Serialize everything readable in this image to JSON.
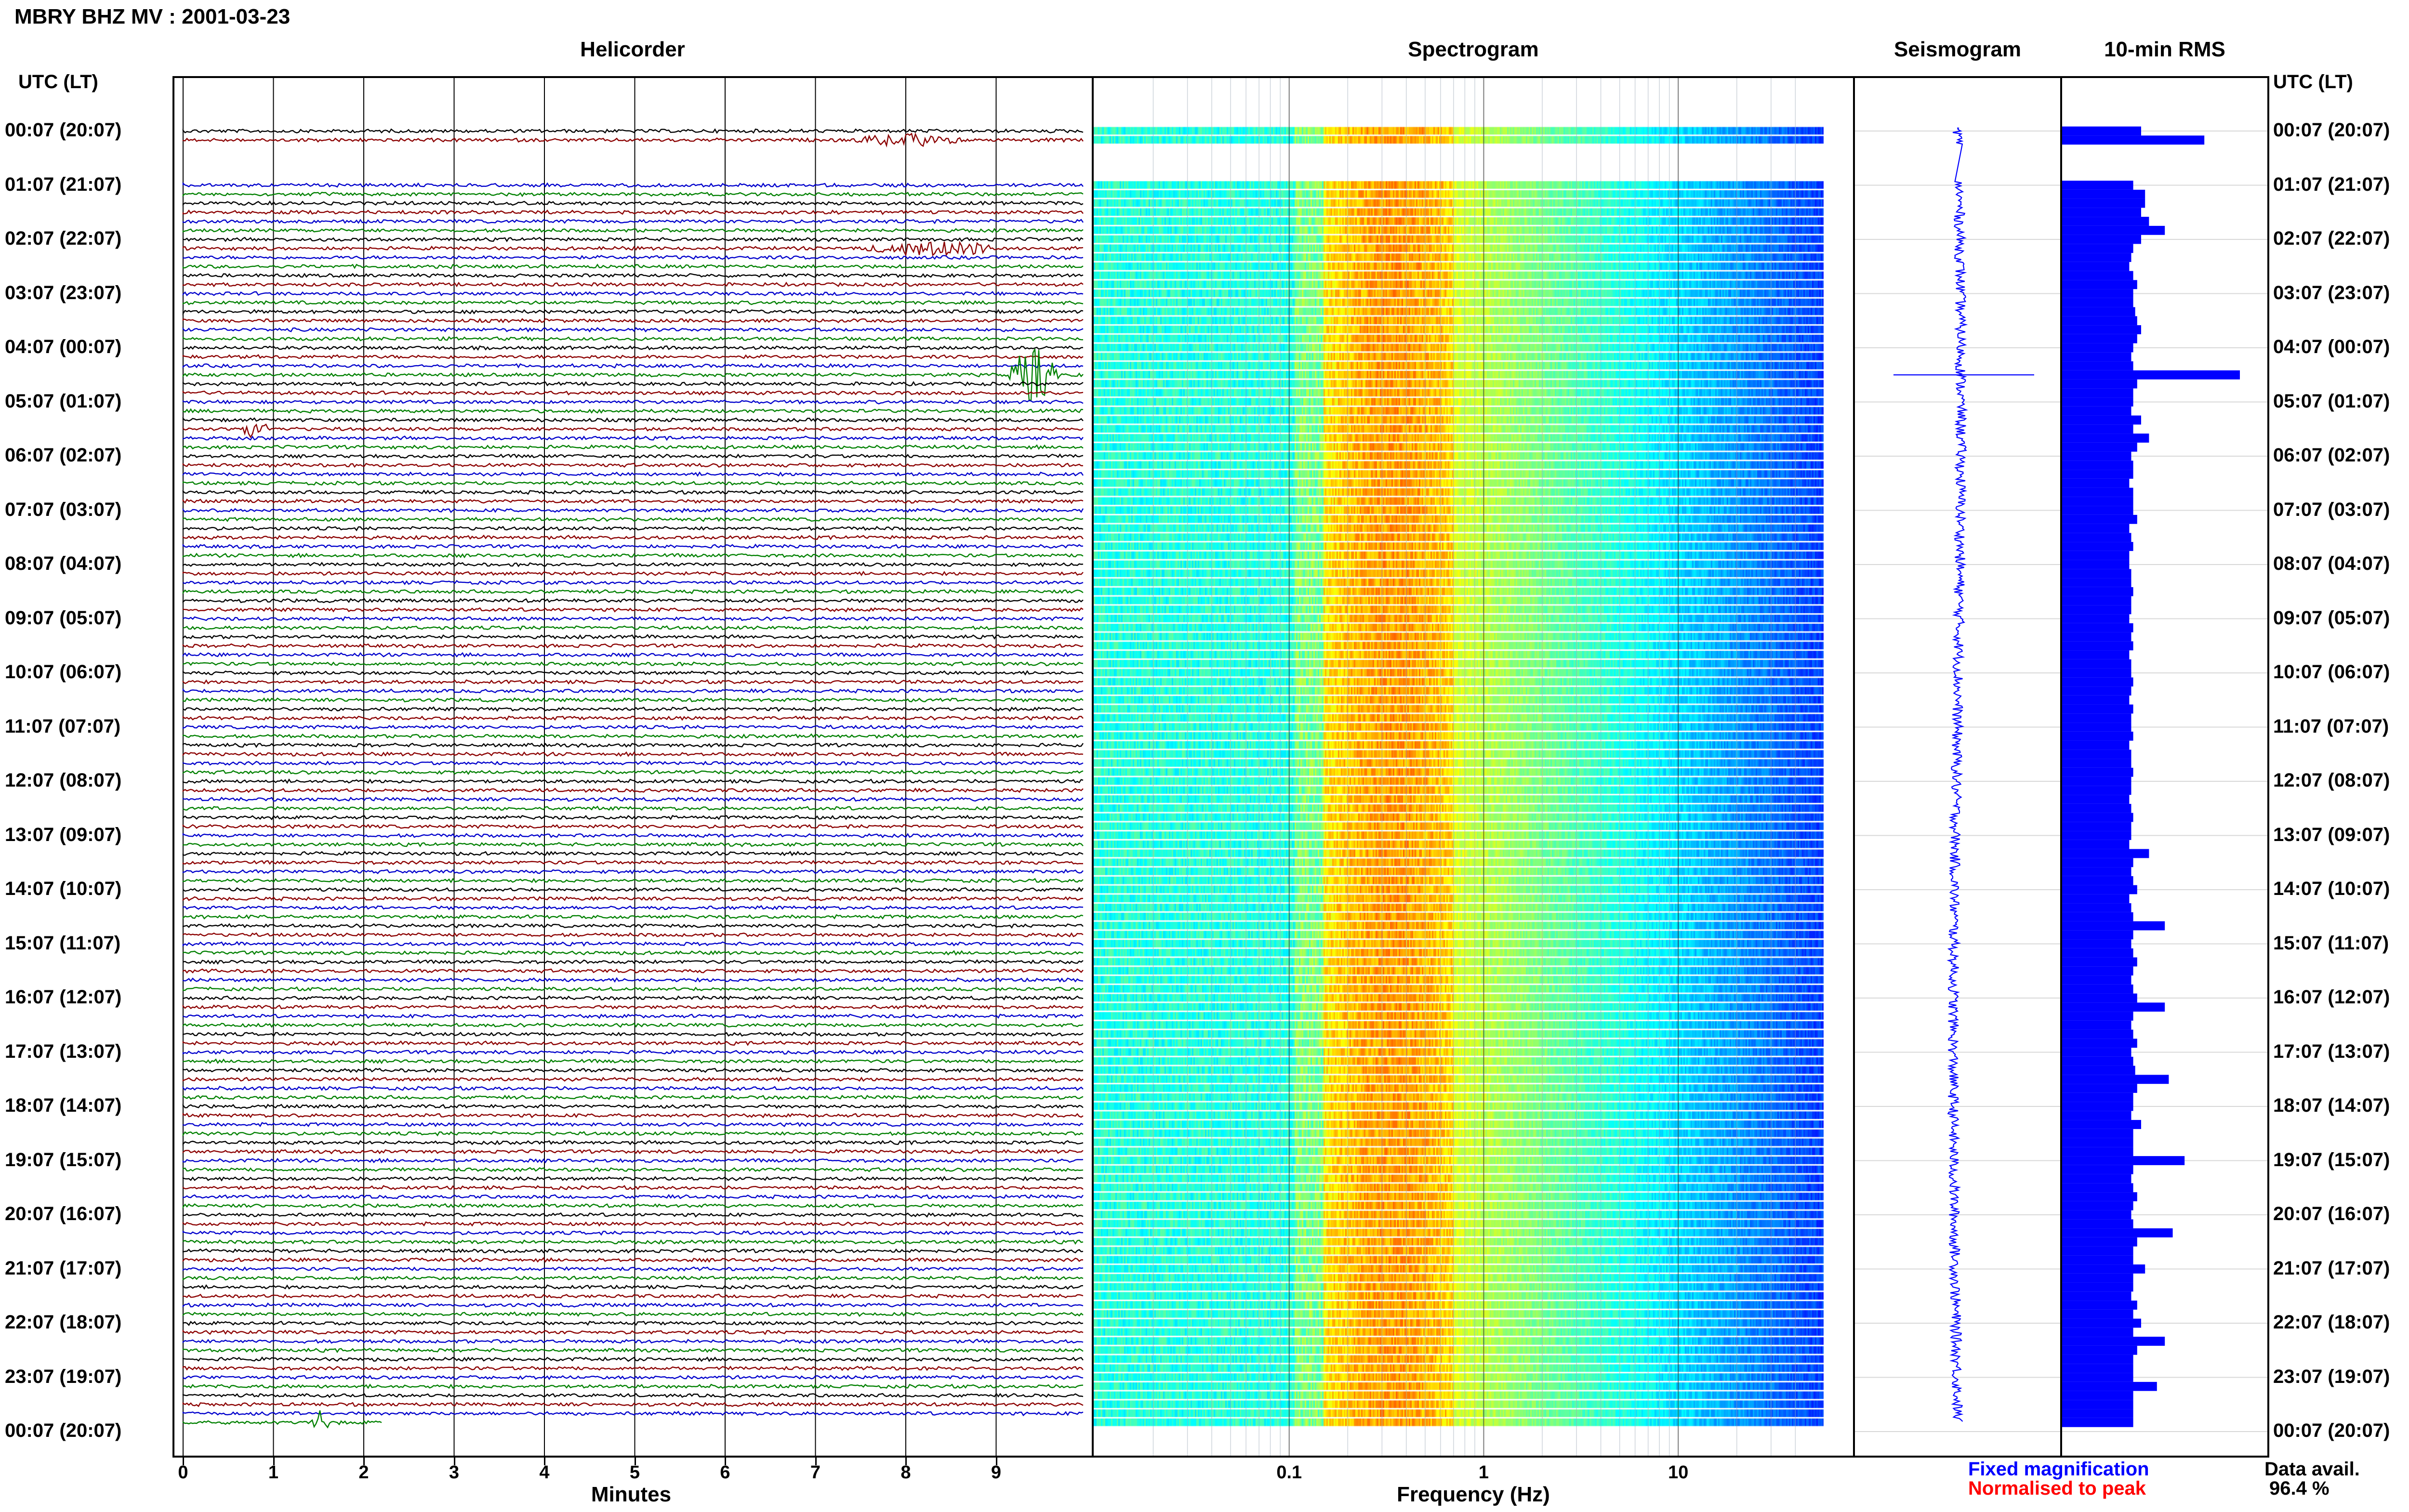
{
  "title": "MBRY BHZ MV : 2001-03-23",
  "utc_lt_label": "UTC (LT)",
  "panels": {
    "helicorder": "Helicorder",
    "spectrogram": "Spectrogram",
    "seismogram": "Seismogram",
    "rms": "10-min RMS"
  },
  "legend": {
    "fixed": "Fixed magnification",
    "fixed_color": "#0000ff",
    "normalised": "Normalised to peak",
    "normalised_color": "#ff0000"
  },
  "data_avail": {
    "label": "Data avail.",
    "value": "96.4 %"
  },
  "colors": {
    "black": "#000000",
    "red": "#8b0000",
    "blue": "#0000cc",
    "green": "#008000",
    "rms": "#0000ff"
  },
  "chart_data": [
    {
      "type": "line",
      "panel": "helicorder",
      "xlabel": "Minutes",
      "xlim": [
        0,
        10
      ],
      "x_ticks": [
        "0",
        "1",
        "2",
        "3",
        "4",
        "5",
        "6",
        "7",
        "8",
        "9"
      ],
      "y_ticks": [
        "00:07 (20:07)",
        "01:07 (21:07)",
        "02:07 (22:07)",
        "03:07 (23:07)",
        "04:07 (00:07)",
        "05:07 (01:07)",
        "06:07 (02:07)",
        "07:07 (03:07)",
        "08:07 (04:07)",
        "09:07 (05:07)",
        "10:07 (06:07)",
        "11:07 (07:07)",
        "12:07 (08:07)",
        "13:07 (09:07)",
        "14:07 (10:07)",
        "15:07 (11:07)",
        "16:07 (12:07)",
        "17:07 (13:07)",
        "18:07 (14:07)",
        "19:07 (15:07)",
        "20:07 (16:07)",
        "21:07 (17:07)",
        "22:07 (18:07)",
        "23:07 (19:07)",
        "00:07 (20:07)"
      ],
      "line_colors_cycle": [
        "black",
        "red",
        "blue",
        "green"
      ],
      "rows": 144,
      "missing_rows": [
        2,
        3,
        4,
        5
      ],
      "events": [
        {
          "row": 1,
          "start_min": 7.3,
          "end_min": 9.2,
          "amp": 0.25
        },
        {
          "row": 13,
          "start_min": 7.4,
          "end_min": 9.8,
          "amp": 0.3
        },
        {
          "row": 27,
          "start_min": 9.1,
          "end_min": 9.9,
          "amp": 1.0
        },
        {
          "row": 33,
          "start_min": 0.6,
          "end_min": 1.1,
          "amp": 0.4
        },
        {
          "row": 143,
          "start_min": 1.4,
          "end_min": 1.7,
          "amp": 0.5
        }
      ]
    },
    {
      "type": "heatmap",
      "panel": "spectrogram",
      "xlabel": "Frequency (Hz)",
      "x_scale": "log",
      "xlim": [
        0.01,
        50
      ],
      "x_ticks": [
        "0.1",
        "1",
        "10"
      ],
      "colormap": "jet"
    },
    {
      "type": "line",
      "panel": "seismogram"
    },
    {
      "type": "bar",
      "panel": "rms",
      "orientation": "horizontal",
      "values_relative": [
        0.4,
        0.72,
        0.0,
        0.0,
        0.0,
        0.0,
        0.36,
        0.42,
        0.42,
        0.4,
        0.44,
        0.52,
        0.4,
        0.36,
        0.35,
        0.34,
        0.36,
        0.38,
        0.36,
        0.36,
        0.37,
        0.38,
        0.4,
        0.38,
        0.36,
        0.35,
        0.36,
        0.9,
        0.38,
        0.36,
        0.36,
        0.35,
        0.4,
        0.36,
        0.44,
        0.38,
        0.35,
        0.36,
        0.36,
        0.34,
        0.36,
        0.36,
        0.36,
        0.38,
        0.34,
        0.35,
        0.36,
        0.34,
        0.34,
        0.35,
        0.35,
        0.36,
        0.35,
        0.35,
        0.34,
        0.36,
        0.35,
        0.36,
        0.34,
        0.35,
        0.35,
        0.36,
        0.35,
        0.34,
        0.36,
        0.35,
        0.35,
        0.36,
        0.34,
        0.35,
        0.35,
        0.36,
        0.35,
        0.35,
        0.34,
        0.35,
        0.36,
        0.35,
        0.35,
        0.34,
        0.44,
        0.36,
        0.35,
        0.36,
        0.38,
        0.34,
        0.35,
        0.36,
        0.52,
        0.36,
        0.35,
        0.36,
        0.38,
        0.36,
        0.35,
        0.36,
        0.38,
        0.52,
        0.36,
        0.35,
        0.36,
        0.38,
        0.35,
        0.36,
        0.37,
        0.54,
        0.38,
        0.36,
        0.36,
        0.35,
        0.4,
        0.36,
        0.36,
        0.36,
        0.62,
        0.36,
        0.35,
        0.36,
        0.38,
        0.36,
        0.35,
        0.36,
        0.56,
        0.38,
        0.36,
        0.36,
        0.42,
        0.36,
        0.36,
        0.35,
        0.38,
        0.36,
        0.4,
        0.36,
        0.52,
        0.38,
        0.36,
        0.36,
        0.36,
        0.48,
        0.36,
        0.36,
        0.36,
        0.36
      ]
    }
  ]
}
